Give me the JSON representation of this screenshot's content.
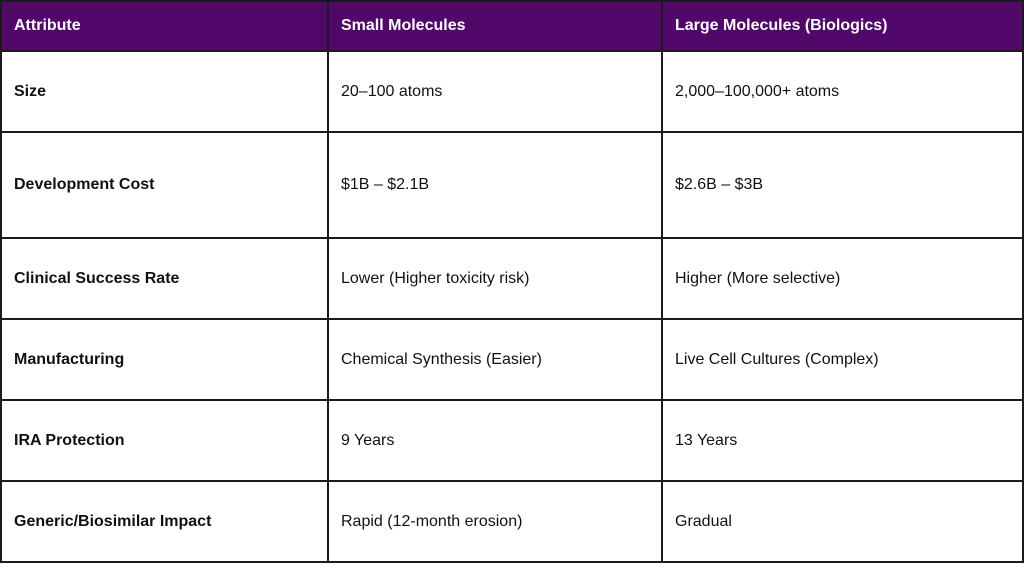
{
  "table": {
    "headers": [
      "Attribute",
      "Small Molecules",
      "Large Molecules (Biologics)"
    ],
    "rows": [
      [
        "Size",
        "20–100 atoms",
        "2,000–100,000+ atoms"
      ],
      [
        "Development Cost",
        "$1B – $2.1B",
        "$2.6B – $3B"
      ],
      [
        "Clinical Success Rate",
        "Lower (Higher toxicity risk)",
        "Higher (More selective)"
      ],
      [
        "Manufacturing",
        "Chemical Synthesis (Easier)",
        "Live Cell Cultures (Complex)"
      ],
      [
        "IRA Protection",
        "9 Years",
        "13 Years"
      ],
      [
        "Generic/Biosimilar Impact",
        "Rapid (12-month erosion)",
        "Gradual"
      ]
    ]
  },
  "colors": {
    "header_background": "#52086a",
    "header_text": "#ffffff",
    "border": "#1a1a1a"
  }
}
